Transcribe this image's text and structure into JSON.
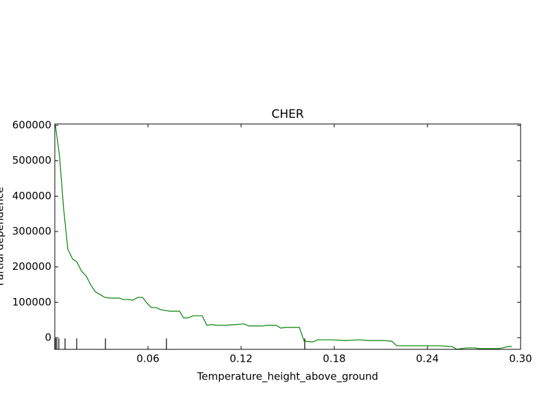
{
  "chart_data": {
    "type": "line",
    "title": "CHER",
    "x_label": "Temperature_height_above_ground",
    "y_label": "Partial dependence",
    "xlim": [
      0,
      0.3
    ],
    "ylim": [
      -33000,
      604000
    ],
    "xticks": [
      0.06,
      0.12,
      0.18,
      0.24,
      {
        "value": 0.3,
        "label": "0.30"
      }
    ],
    "yticks": [
      0,
      100000,
      200000,
      300000,
      400000,
      500000,
      600000
    ],
    "deciles": [
      0.0004,
      0.0013,
      0.0026,
      0.0066,
      0.0141,
      0.0326,
      0.0719,
      0.161
    ],
    "series": [
      {
        "color": "#008000",
        "x": [
          0.0004,
          0.003,
          0.0057,
          0.0084,
          0.0115,
          0.0141,
          0.0172,
          0.0203,
          0.0229,
          0.026,
          0.0291,
          0.0322,
          0.0353,
          0.0384,
          0.0415,
          0.0441,
          0.0472,
          0.0503,
          0.0534,
          0.0565,
          0.0591,
          0.0622,
          0.0653,
          0.0684,
          0.071,
          0.0741,
          0.0772,
          0.0803,
          0.0829,
          0.086,
          0.0891,
          0.0922,
          0.0949,
          0.0979,
          0.101,
          0.1041,
          0.1099,
          0.116,
          0.1218,
          0.1249,
          0.1337,
          0.1368,
          0.1425,
          0.1456,
          0.1487,
          0.1575,
          0.1606,
          0.1663,
          0.1694,
          0.1782,
          0.1875,
          0.1963,
          0.2021,
          0.2113,
          0.2171,
          0.2202,
          0.2294,
          0.2382,
          0.2471,
          0.2559,
          0.259,
          0.2647,
          0.2704,
          0.2735,
          0.2854,
          0.2885,
          0.2916,
          0.2943
        ],
        "values": [
          600000,
          515000,
          364000,
          250000,
          222000,
          215000,
          188000,
          174000,
          151000,
          130000,
          122000,
          114000,
          112000,
          112000,
          112000,
          108000,
          108000,
          106000,
          114000,
          114000,
          99000,
          85000,
          85000,
          79000,
          77000,
          75000,
          75000,
          75000,
          56000,
          56000,
          62000,
          62000,
          62000,
          35000,
          37000,
          35000,
          35000,
          37000,
          39000,
          33000,
          33000,
          35000,
          35000,
          27000,
          29000,
          29000,
          -10000,
          -12000,
          -6000,
          -6000,
          -8000,
          -6000,
          -8000,
          -8000,
          -10000,
          -23000,
          -23000,
          -23000,
          -23000,
          -25000,
          -33000,
          -29000,
          -29000,
          -31000,
          -31000,
          -29000,
          -25000,
          -25000
        ]
      }
    ]
  }
}
